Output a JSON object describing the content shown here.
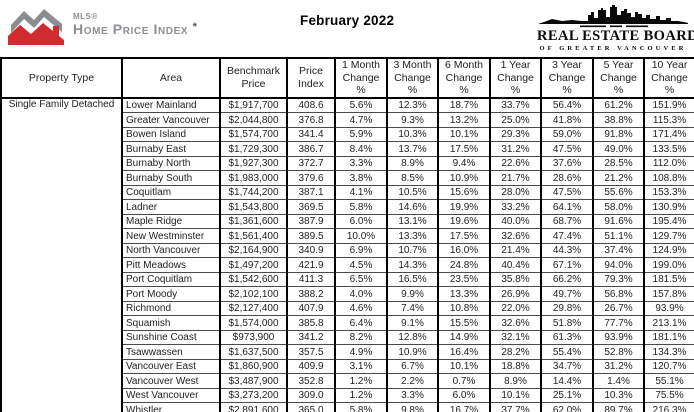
{
  "header": {
    "mls_logo": {
      "brand": "MLS®",
      "product": "Home Price Index",
      "asterisk": "*"
    },
    "report_month": "February 2022",
    "board_logo": {
      "name": "REAL ESTATE BOARD",
      "subtitle": "OF GREATER VANCOUVER"
    }
  },
  "colors": {
    "logo_red": "#d02c2f",
    "logo_gray": "#8b8d90",
    "skyline_black": "#0a0a0a",
    "table_border": "#000000",
    "row_line": "#4a4a4a",
    "text": "#1f1f1f"
  },
  "table": {
    "property_type": "Single Family Detached",
    "columns": [
      "Property Type",
      "Area",
      "Benchmark Price",
      "Price Index",
      "1 Month Change %",
      "3 Month Change %",
      "6 Month Change %",
      "1 Year Change %",
      "3 Year Change %",
      "5 Year Change %",
      "10 Year Change %"
    ],
    "rows": [
      {
        "area": "Lower Mainland",
        "benchmark_price": "$1,917,700",
        "price_index": "408.6",
        "changes": [
          "5.6%",
          "12.3%",
          "18.7%",
          "33.7%",
          "56.4%",
          "61.2%",
          "151.9%"
        ]
      },
      {
        "area": "Greater Vancouver",
        "benchmark_price": "$2,044,800",
        "price_index": "376.8",
        "changes": [
          "4.7%",
          "9.3%",
          "13.2%",
          "25.0%",
          "41.8%",
          "38.8%",
          "115.3%"
        ]
      },
      {
        "area": "Bowen Island",
        "benchmark_price": "$1,574,700",
        "price_index": "341.4",
        "changes": [
          "5.9%",
          "10.3%",
          "10.1%",
          "29.3%",
          "59.0%",
          "91.8%",
          "171.4%"
        ]
      },
      {
        "area": "Burnaby East",
        "benchmark_price": "$1,729,300",
        "price_index": "386.7",
        "changes": [
          "8.4%",
          "13.7%",
          "17.5%",
          "31.2%",
          "47.5%",
          "49.0%",
          "133.5%"
        ]
      },
      {
        "area": "Burnaby North",
        "benchmark_price": "$1,927,300",
        "price_index": "372.7",
        "changes": [
          "3.3%",
          "8.9%",
          "9.4%",
          "22.6%",
          "37.6%",
          "28.5%",
          "112.0%"
        ]
      },
      {
        "area": "Burnaby South",
        "benchmark_price": "$1,983,000",
        "price_index": "379.6",
        "changes": [
          "3.8%",
          "8.5%",
          "10.9%",
          "21.7%",
          "28.6%",
          "21.2%",
          "108.8%"
        ]
      },
      {
        "area": "Coquitlam",
        "benchmark_price": "$1,744,200",
        "price_index": "387.1",
        "changes": [
          "4.1%",
          "10.5%",
          "15.6%",
          "28.0%",
          "47.5%",
          "55.6%",
          "153.3%"
        ]
      },
      {
        "area": "Ladner",
        "benchmark_price": "$1,543,800",
        "price_index": "369.5",
        "changes": [
          "5.8%",
          "14.6%",
          "19.9%",
          "33.2%",
          "64.1%",
          "58.0%",
          "130.9%"
        ]
      },
      {
        "area": "Maple Ridge",
        "benchmark_price": "$1,361,600",
        "price_index": "387.9",
        "changes": [
          "6.0%",
          "13.1%",
          "19.6%",
          "40.0%",
          "68.7%",
          "91.6%",
          "195.4%"
        ]
      },
      {
        "area": "New Westminster",
        "benchmark_price": "$1,561,400",
        "price_index": "389.5",
        "changes": [
          "10.0%",
          "13.3%",
          "17.5%",
          "32.6%",
          "47.4%",
          "51.1%",
          "129.7%"
        ]
      },
      {
        "area": "North Vancouver",
        "benchmark_price": "$2,164,900",
        "price_index": "340.9",
        "changes": [
          "6.9%",
          "10.7%",
          "16.0%",
          "21.4%",
          "44.3%",
          "37.4%",
          "124.9%"
        ]
      },
      {
        "area": "Pitt Meadows",
        "benchmark_price": "$1,497,200",
        "price_index": "421.9",
        "changes": [
          "4.5%",
          "14.3%",
          "24.8%",
          "40.4%",
          "67.1%",
          "94.0%",
          "199.0%"
        ]
      },
      {
        "area": "Port Coquitlam",
        "benchmark_price": "$1,542,600",
        "price_index": "411.3",
        "changes": [
          "6.5%",
          "16.5%",
          "23.5%",
          "35.8%",
          "66.2%",
          "79.3%",
          "181.5%"
        ]
      },
      {
        "area": "Port Moody",
        "benchmark_price": "$2,102,100",
        "price_index": "388.2",
        "changes": [
          "4.0%",
          "9.9%",
          "13.3%",
          "26.9%",
          "49.7%",
          "56.8%",
          "157.8%"
        ]
      },
      {
        "area": "Richmond",
        "benchmark_price": "$2,127,400",
        "price_index": "407.9",
        "changes": [
          "4.6%",
          "7.4%",
          "10.8%",
          "22.0%",
          "29.8%",
          "26.7%",
          "93.9%"
        ]
      },
      {
        "area": "Squamish",
        "benchmark_price": "$1,574,000",
        "price_index": "385.8",
        "changes": [
          "6.4%",
          "9.1%",
          "15.5%",
          "32.6%",
          "51.8%",
          "77.7%",
          "213.1%"
        ]
      },
      {
        "area": "Sunshine Coast",
        "benchmark_price": "$973,900",
        "price_index": "341.2",
        "changes": [
          "8.2%",
          "12.8%",
          "14.9%",
          "32.1%",
          "61.3%",
          "93.9%",
          "181.1%"
        ]
      },
      {
        "area": "Tsawwassen",
        "benchmark_price": "$1,637,500",
        "price_index": "357.5",
        "changes": [
          "4.9%",
          "10.9%",
          "16.4%",
          "28.2%",
          "55.4%",
          "52.8%",
          "134.3%"
        ]
      },
      {
        "area": "Vancouver East",
        "benchmark_price": "$1,860,900",
        "price_index": "409.9",
        "changes": [
          "3.1%",
          "6.7%",
          "10.1%",
          "18.8%",
          "34.7%",
          "31.2%",
          "120.7%"
        ]
      },
      {
        "area": "Vancouver West",
        "benchmark_price": "$3,487,900",
        "price_index": "352.8",
        "changes": [
          "1.2%",
          "2.2%",
          "0.7%",
          "8.9%",
          "14.4%",
          "1.4%",
          "55.1%"
        ]
      },
      {
        "area": "West Vancouver",
        "benchmark_price": "$3,273,200",
        "price_index": "309.0",
        "changes": [
          "1.2%",
          "3.3%",
          "6.0%",
          "10.1%",
          "25.1%",
          "10.3%",
          "75.5%"
        ]
      },
      {
        "area": "Whistler",
        "benchmark_price": "$2,891,600",
        "price_index": "365.0",
        "changes": [
          "5.8%",
          "9.8%",
          "16.7%",
          "37.7%",
          "62.0%",
          "89.7%",
          "216.3%"
        ]
      }
    ]
  }
}
